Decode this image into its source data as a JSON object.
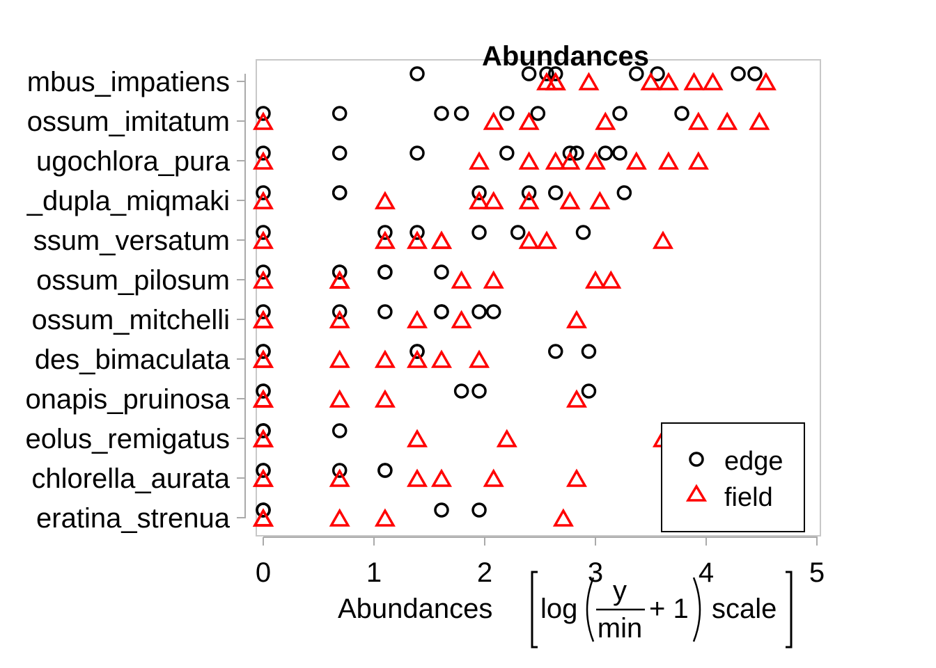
{
  "chart_data": {
    "type": "scatter",
    "title": "Abundances",
    "xlabel_prefix": "Abundances",
    "xlabel_formula": {
      "log": "log",
      "numerator": "y",
      "denominator": "min",
      "plus_one": "+ 1",
      "scale": "scale"
    },
    "xlim": [
      0,
      5
    ],
    "x_ticks": [
      "0",
      "1",
      "2",
      "3",
      "4",
      "5"
    ],
    "x_tick_values": [
      0,
      1,
      2,
      3,
      4,
      5
    ],
    "legend": {
      "position": "bottom-right",
      "entries": [
        {
          "label": "edge",
          "marker": "circle",
          "color": "#000000"
        },
        {
          "label": "field",
          "marker": "triangle",
          "color": "#ff0000"
        }
      ]
    },
    "categories": [
      "mbus_impatiens",
      "ossum_imitatum",
      "ugochlora_pura",
      "_dupla_miqmaki",
      "ssum_versatum",
      "ossum_pilosum",
      "ossum_mitchelli",
      "des_bimaculata",
      "onapis_pruinosa",
      "eolus_remigatus",
      "chlorella_aurata",
      "eratina_strenua"
    ],
    "series": [
      {
        "name": "edge",
        "values": [
          [
            1.39,
            2.4,
            2.56,
            2.64,
            3.37,
            3.56,
            4.29,
            4.44
          ],
          [
            0,
            0.69,
            1.61,
            1.79,
            2.2,
            2.48,
            3.22,
            3.78
          ],
          [
            0,
            0.69,
            1.39,
            2.2,
            2.77,
            2.83,
            3.09,
            3.22
          ],
          [
            0,
            0.69,
            0.69,
            1.95,
            2.4,
            2.64,
            3.26
          ],
          [
            0,
            1.1,
            1.39,
            1.95,
            2.3,
            2.89
          ],
          [
            0,
            0.69,
            0.69,
            1.1,
            1.1,
            1.61
          ],
          [
            0,
            0.69,
            1.1,
            1.61,
            1.61,
            1.95,
            2.08
          ],
          [
            0,
            0,
            1.39,
            1.39,
            2.64,
            2.94
          ],
          [
            0,
            0,
            1.79,
            1.95,
            2.94
          ],
          [
            0,
            0,
            0,
            0.69
          ],
          [
            0,
            0,
            0.69,
            1.1,
            1.1
          ],
          [
            0,
            0,
            0,
            1.61,
            1.95
          ]
        ]
      },
      {
        "name": "field",
        "values": [
          [
            2.56,
            2.64,
            2.64,
            2.94,
            3.5,
            3.66,
            3.89,
            4.06,
            4.54
          ],
          [
            0,
            2.08,
            2.4,
            3.09,
            3.93,
            4.19,
            4.48
          ],
          [
            0,
            1.95,
            2.4,
            2.64,
            2.77,
            3.0,
            3.37,
            3.66,
            3.93
          ],
          [
            0,
            1.1,
            1.95,
            2.08,
            2.4,
            2.77,
            3.04
          ],
          [
            0,
            1.1,
            1.39,
            1.61,
            1.61,
            2.4,
            2.56,
            3.61
          ],
          [
            0,
            0.69,
            0.69,
            0.69,
            1.79,
            2.08,
            3.0,
            3.14
          ],
          [
            0,
            0,
            0.69,
            1.39,
            1.79,
            2.83
          ],
          [
            0,
            0,
            0.69,
            1.1,
            1.39,
            1.61,
            1.95
          ],
          [
            0,
            0,
            0,
            0.69,
            1.1,
            2.83
          ],
          [
            0,
            0,
            0,
            1.39,
            2.2,
            3.61
          ],
          [
            0,
            0,
            0.69,
            1.39,
            1.61,
            2.08,
            2.83
          ],
          [
            0,
            0,
            0,
            0.69,
            1.1,
            2.71
          ]
        ]
      }
    ]
  }
}
